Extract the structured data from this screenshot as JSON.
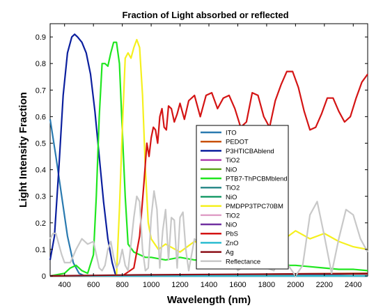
{
  "chart_data": {
    "type": "line",
    "title": "Fraction of Light absorbed or reflected",
    "xlabel": "Wavelength (nm)",
    "ylabel": "Light Intensity Fraction",
    "xlim": [
      300,
      2500
    ],
    "ylim": [
      0,
      0.95
    ],
    "xticks": [
      400,
      600,
      800,
      1000,
      1200,
      1400,
      1600,
      1800,
      2000,
      2200,
      2400
    ],
    "yticks": [
      0,
      0.1,
      0.2,
      0.3,
      0.4,
      0.5,
      0.6,
      0.7,
      0.8,
      0.9
    ],
    "grid": false,
    "legend_position": "center",
    "series": [
      {
        "name": "ITO",
        "color": "#2a7ab0",
        "x": [
          300,
          340,
          380,
          420,
          460,
          500,
          540,
          580,
          1000,
          1400,
          1800,
          2200,
          2500
        ],
        "y": [
          0.59,
          0.45,
          0.3,
          0.15,
          0.05,
          0.01,
          0.0,
          0.0,
          0.0,
          0.0,
          0.0,
          0.005,
          0.01
        ]
      },
      {
        "name": "PEDOT",
        "color": "#c8520a",
        "x": [
          300,
          800,
          1200,
          1600,
          2000,
          2500
        ],
        "y": [
          0.0,
          0.0,
          0.003,
          0.005,
          0.008,
          0.01
        ]
      },
      {
        "name": "P3HTICBAblend",
        "color": "#0b1f9e",
        "x": [
          300,
          330,
          360,
          390,
          420,
          450,
          470,
          490,
          520,
          550,
          580,
          610,
          640,
          670,
          700,
          730,
          750,
          760
        ],
        "y": [
          0.06,
          0.15,
          0.4,
          0.68,
          0.84,
          0.9,
          0.91,
          0.9,
          0.88,
          0.84,
          0.76,
          0.62,
          0.45,
          0.28,
          0.14,
          0.05,
          0.01,
          0.0
        ]
      },
      {
        "name": "TiO2",
        "color": "#b03fb0",
        "x": [
          300,
          1000,
          2000,
          2500
        ],
        "y": [
          0.0,
          0.0,
          0.0,
          0.0
        ]
      },
      {
        "name": "NiO",
        "color": "#62a826",
        "x": [
          300,
          1000,
          2000,
          2500
        ],
        "y": [
          0.0,
          0.0,
          0.0,
          0.0
        ]
      },
      {
        "name": "PTB7-ThPCBMblend",
        "color": "#1fe61f",
        "x": [
          300,
          350,
          400,
          440,
          480,
          520,
          560,
          600,
          620,
          640,
          660,
          680,
          700,
          720,
          740,
          760,
          780,
          800,
          820,
          840,
          880,
          920,
          960,
          1000,
          1100,
          1200,
          1300,
          1400,
          1500,
          1600,
          1700,
          1800,
          1900,
          2000,
          2100,
          2200,
          2300,
          2400,
          2500
        ],
        "y": [
          0.0,
          0.005,
          0.01,
          0.03,
          0.04,
          0.02,
          0.01,
          0.08,
          0.3,
          0.6,
          0.8,
          0.8,
          0.79,
          0.84,
          0.88,
          0.88,
          0.8,
          0.55,
          0.3,
          0.12,
          0.09,
          0.08,
          0.07,
          0.07,
          0.06,
          0.07,
          0.06,
          0.06,
          0.05,
          0.05,
          0.06,
          0.05,
          0.04,
          0.04,
          0.035,
          0.03,
          0.025,
          0.025,
          0.02
        ]
      },
      {
        "name": "TiO2",
        "color": "#2e8b8b",
        "x": [
          300,
          1000,
          2000,
          2500
        ],
        "y": [
          0.0,
          0.0,
          0.0,
          0.0
        ]
      },
      {
        "name": "NiO",
        "color": "#1c9c6a",
        "x": [
          300,
          1000,
          2000,
          2500
        ],
        "y": [
          0.0,
          0.0,
          0.0,
          0.0
        ]
      },
      {
        "name": "PMDPP3TPC70BM",
        "color": "#f5f01e",
        "x": [
          300,
          400,
          500,
          600,
          700,
          760,
          780,
          800,
          820,
          840,
          860,
          880,
          900,
          920,
          940,
          960,
          980,
          1000,
          1050,
          1100,
          1200,
          1300,
          1400,
          1500,
          1600,
          1700,
          1800,
          1900,
          2000,
          2100,
          2200,
          2300,
          2400,
          2500
        ],
        "y": [
          0.0,
          0.0,
          0.0,
          0.0,
          0.0,
          0.0,
          0.25,
          0.55,
          0.82,
          0.84,
          0.82,
          0.86,
          0.89,
          0.86,
          0.68,
          0.4,
          0.2,
          0.14,
          0.1,
          0.12,
          0.09,
          0.13,
          0.11,
          0.12,
          0.14,
          0.12,
          0.15,
          0.13,
          0.17,
          0.14,
          0.16,
          0.13,
          0.11,
          0.1
        ]
      },
      {
        "name": "TiO2",
        "color": "#e0a0c8",
        "x": [
          300,
          1000,
          2000,
          2500
        ],
        "y": [
          0.0,
          0.0,
          0.0,
          0.0
        ]
      },
      {
        "name": "NiO",
        "color": "#7030a0",
        "x": [
          300,
          1000,
          2000,
          2500
        ],
        "y": [
          0.0,
          0.0,
          0.0,
          0.0
        ]
      },
      {
        "name": "PbS",
        "color": "#d41414",
        "x": [
          300,
          800,
          880,
          920,
          950,
          970,
          985,
          1000,
          1015,
          1030,
          1045,
          1060,
          1075,
          1090,
          1105,
          1120,
          1140,
          1160,
          1180,
          1200,
          1230,
          1260,
          1300,
          1340,
          1380,
          1420,
          1460,
          1500,
          1540,
          1580,
          1620,
          1660,
          1700,
          1740,
          1780,
          1820,
          1860,
          1900,
          1940,
          1980,
          2020,
          2060,
          2100,
          2140,
          2180,
          2220,
          2260,
          2300,
          2340,
          2380,
          2420,
          2460,
          2500
        ],
        "y": [
          0.0,
          0.0,
          0.03,
          0.15,
          0.35,
          0.5,
          0.45,
          0.52,
          0.56,
          0.55,
          0.5,
          0.6,
          0.63,
          0.56,
          0.55,
          0.64,
          0.63,
          0.58,
          0.61,
          0.65,
          0.59,
          0.66,
          0.68,
          0.6,
          0.68,
          0.69,
          0.63,
          0.67,
          0.68,
          0.63,
          0.56,
          0.58,
          0.69,
          0.68,
          0.6,
          0.56,
          0.66,
          0.72,
          0.77,
          0.77,
          0.71,
          0.62,
          0.55,
          0.56,
          0.61,
          0.67,
          0.67,
          0.62,
          0.58,
          0.6,
          0.67,
          0.73,
          0.76
        ]
      },
      {
        "name": "ZnO",
        "color": "#2bbcd0",
        "x": [
          300,
          1000,
          2000,
          2500
        ],
        "y": [
          0.0,
          0.0,
          0.0,
          0.0
        ]
      },
      {
        "name": "Ag",
        "color": "#8b0f18",
        "x": [
          300,
          600,
          900,
          1200,
          1500,
          1800,
          2100,
          2500
        ],
        "y": [
          0.0,
          0.002,
          0.004,
          0.005,
          0.006,
          0.007,
          0.008,
          0.008
        ]
      },
      {
        "name": "Reflectance",
        "color": "#c8c8c8",
        "x": [
          300,
          320,
          340,
          360,
          380,
          400,
          440,
          480,
          520,
          560,
          600,
          620,
          640,
          660,
          680,
          700,
          720,
          740,
          760,
          780,
          800,
          820,
          840,
          860,
          880,
          900,
          920,
          940,
          960,
          980,
          1000,
          1020,
          1040,
          1060,
          1080,
          1100,
          1120,
          1140,
          1160,
          1180,
          1200,
          1220,
          1240,
          1260,
          1300,
          1350,
          1400,
          1450,
          1500,
          1550,
          1600,
          1650,
          1700,
          1750,
          1800,
          1850,
          1900,
          1950,
          2000,
          2050,
          2100,
          2150,
          2200,
          2250,
          2300,
          2350,
          2400,
          2450,
          2500
        ],
        "y": [
          0.14,
          0.16,
          0.16,
          0.12,
          0.08,
          0.05,
          0.05,
          0.1,
          0.14,
          0.12,
          0.13,
          0.08,
          0.03,
          0.02,
          0.04,
          0.1,
          0.13,
          0.07,
          0.03,
          0.05,
          0.1,
          0.04,
          0.02,
          0.12,
          0.22,
          0.3,
          0.28,
          0.1,
          0.02,
          0.03,
          0.22,
          0.32,
          0.25,
          0.03,
          0.17,
          0.25,
          0.06,
          0.22,
          0.21,
          0.03,
          0.22,
          0.24,
          0.1,
          0.02,
          0.14,
          0.11,
          0.05,
          0.04,
          0.13,
          0.09,
          0.02,
          0.04,
          0.13,
          0.14,
          0.03,
          0.02,
          0.08,
          0.04,
          0.0,
          0.04,
          0.23,
          0.28,
          0.15,
          0.01,
          0.14,
          0.25,
          0.23,
          0.14,
          0.09
        ]
      }
    ]
  }
}
